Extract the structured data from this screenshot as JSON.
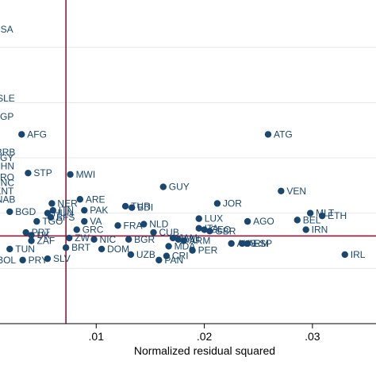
{
  "chart_data": {
    "type": "scatter",
    "title": "",
    "xlabel": "Normalized residual squared",
    "ylabel": "",
    "xlim": [
      0,
      0.035
    ],
    "ylim": [
      0,
      0.24
    ],
    "x_ticks": [
      0.01,
      0.02,
      0.03
    ],
    "x_tick_labels": [
      ".01",
      ".02",
      ".03"
    ],
    "grid": "horizontal",
    "reference_lines": {
      "x": 0.0072,
      "y": 0.0635,
      "color": "#8b1a3a"
    },
    "marker_color": "#1a476f",
    "points": [
      {
        "label": "USA",
        "x": 0.0,
        "y": 0.213
      },
      {
        "label": "SLE",
        "x": 0.0003,
        "y": 0.163
      },
      {
        "label": "SGP",
        "x": 0.0,
        "y": 0.15
      },
      {
        "label": "AFG",
        "x": 0.0031,
        "y": 0.137
      },
      {
        "label": "ATG",
        "x": 0.0259,
        "y": 0.137
      },
      {
        "label": "BRB",
        "x": 0.0002,
        "y": 0.124
      },
      {
        "label": "EGY",
        "x": 0.0,
        "y": 0.12
      },
      {
        "label": "CHN",
        "x": 0.0,
        "y": 0.114
      },
      {
        "label": "STP",
        "x": 0.0037,
        "y": 0.109
      },
      {
        "label": "MWI",
        "x": 0.0076,
        "y": 0.108
      },
      {
        "label": "GUY",
        "x": 0.0162,
        "y": 0.099
      },
      {
        "label": "VEN",
        "x": 0.0271,
        "y": 0.096
      },
      {
        "label": "ARE",
        "x": 0.0085,
        "y": 0.09
      },
      {
        "label": "NER",
        "x": 0.0059,
        "y": 0.087
      },
      {
        "label": "JOR",
        "x": 0.0212,
        "y": 0.087
      },
      {
        "label": "TUR",
        "x": 0.0127,
        "y": 0.085
      },
      {
        "label": "BDI",
        "x": 0.0133,
        "y": 0.084
      },
      {
        "label": "PAK",
        "x": 0.0089,
        "y": 0.082
      },
      {
        "label": "MLT",
        "x": 0.0298,
        "y": 0.08
      },
      {
        "label": "ETH",
        "x": 0.0309,
        "y": 0.078
      },
      {
        "label": "BEL",
        "x": 0.0286,
        "y": 0.075
      },
      {
        "label": "LUX",
        "x": 0.0195,
        "y": 0.076
      },
      {
        "label": "AGO",
        "x": 0.024,
        "y": 0.074
      },
      {
        "label": "BFS",
        "x": 0.0058,
        "y": 0.077
      },
      {
        "label": "VA",
        "x": 0.0089,
        "y": 0.074
      },
      {
        "label": "NLD",
        "x": 0.0144,
        "y": 0.072
      },
      {
        "label": "FRA",
        "x": 0.012,
        "y": 0.071
      },
      {
        "label": "IRN",
        "x": 0.0294,
        "y": 0.068
      },
      {
        "label": "ITA",
        "x": 0.0195,
        "y": 0.069
      },
      {
        "label": "GEO",
        "x": 0.02,
        "y": 0.068
      },
      {
        "label": "GBR",
        "x": 0.0205,
        "y": 0.067
      },
      {
        "label": "CUB",
        "x": 0.0153,
        "y": 0.066
      },
      {
        "label": "JAM",
        "x": 0.0171,
        "y": 0.062
      },
      {
        "label": "MLI",
        "x": 0.0176,
        "y": 0.061
      },
      {
        "label": "ARM",
        "x": 0.0181,
        "y": 0.06
      },
      {
        "label": "GRC",
        "x": 0.0082,
        "y": 0.068
      },
      {
        "label": "NIC",
        "x": 0.0098,
        "y": 0.061
      },
      {
        "label": "BGR",
        "x": 0.013,
        "y": 0.061
      },
      {
        "label": "ZW",
        "x": 0.0075,
        "y": 0.062
      },
      {
        "label": "ESP",
        "x": 0.024,
        "y": 0.058
      },
      {
        "label": "AUS",
        "x": 0.0225,
        "y": 0.058
      },
      {
        "label": "ARM",
        "x": 0.0235,
        "y": 0.058
      },
      {
        "label": "MDA",
        "x": 0.0167,
        "y": 0.056
      },
      {
        "label": "PER",
        "x": 0.0189,
        "y": 0.053
      },
      {
        "label": "DOM",
        "x": 0.0105,
        "y": 0.054
      },
      {
        "label": "BRT",
        "x": 0.0072,
        "y": 0.055
      },
      {
        "label": "ZAF",
        "x": 0.004,
        "y": 0.06
      },
      {
        "label": "UZB",
        "x": 0.0132,
        "y": 0.05
      },
      {
        "label": "CRI",
        "x": 0.0165,
        "y": 0.049
      },
      {
        "label": "PAN",
        "x": 0.0158,
        "y": 0.046
      },
      {
        "label": "IRL",
        "x": 0.033,
        "y": 0.05
      },
      {
        "label": "SLV",
        "x": 0.0055,
        "y": 0.047
      },
      {
        "label": "PRY",
        "x": 0.0032,
        "y": 0.046
      },
      {
        "label": "BOL",
        "x": 0.0003,
        "y": 0.046
      },
      {
        "label": "TUN",
        "x": 0.002,
        "y": 0.054
      },
      {
        "label": "HUN",
        "x": 0.0055,
        "y": 0.08
      },
      {
        "label": "ITN",
        "x": 0.006,
        "y": 0.082
      },
      {
        "label": "BGD",
        "x": 0.002,
        "y": 0.081
      },
      {
        "label": "NAB",
        "x": 0.0002,
        "y": 0.09
      },
      {
        "label": "KNT",
        "x": 0.0001,
        "y": 0.096
      },
      {
        "label": "UNC",
        "x": 0.0,
        "y": 0.102
      },
      {
        "label": "BRO",
        "x": 0.0,
        "y": 0.106
      },
      {
        "label": "UK",
        "x": 0.004,
        "y": 0.064
      },
      {
        "label": "PRT",
        "x": 0.0035,
        "y": 0.066
      },
      {
        "label": "TGO",
        "x": 0.0045,
        "y": 0.074
      }
    ]
  }
}
